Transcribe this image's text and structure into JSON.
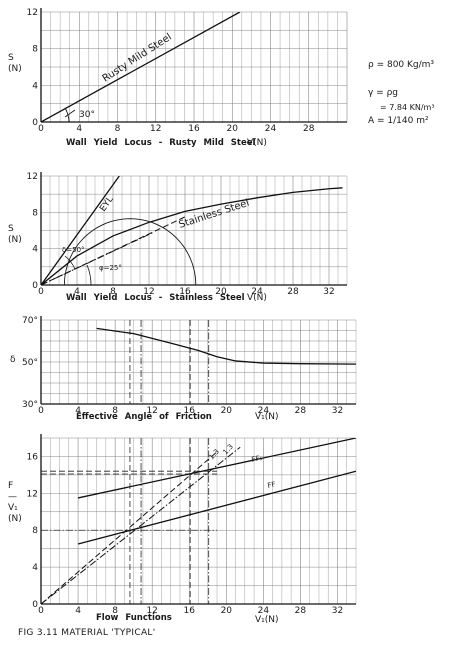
{
  "side_notes": {
    "rho": "ρ = 800 Kg/m³",
    "gamma": "γ = ρg",
    "gamma_value": "= 7.84 KN/m³",
    "area": "A = 1/140 m²"
  },
  "caption": "FIG 3.11   MATERIAL 'TYPICAL'",
  "chart_data": [
    {
      "type": "line",
      "title": "Wall Yield Locus - Rusty Mild Steel",
      "xlabel": "V(N)",
      "ylabel": "S\n(N)",
      "xlim": [
        0,
        32
      ],
      "ylim": [
        0,
        12
      ],
      "x_ticks": [
        0,
        4,
        8,
        12,
        16,
        20,
        24,
        28
      ],
      "y_ticks": [
        0,
        4,
        8,
        12
      ],
      "grid": true,
      "series": [
        {
          "name": "Rusty Mild Steel",
          "style": "solid",
          "points": [
            [
              0,
              0
            ],
            [
              20.8,
              12
            ]
          ]
        }
      ],
      "annotations": [
        {
          "text": "30°",
          "x": 3.3,
          "y": 0.7
        }
      ]
    },
    {
      "type": "line",
      "title": "Wall Yield Locus - Stainless Steel",
      "xlabel": "V(N)",
      "ylabel": "S\n(N)",
      "xlim": [
        0,
        34
      ],
      "ylim": [
        0,
        12
      ],
      "x_ticks": [
        0,
        4,
        8,
        12,
        16,
        20,
        24,
        28,
        32
      ],
      "y_ticks": [
        0,
        4,
        8,
        12
      ],
      "grid": true,
      "series": [
        {
          "name": "EYL",
          "style": "solid",
          "points": [
            [
              0,
              0
            ],
            [
              8.7,
              12
            ]
          ]
        },
        {
          "name": "Stainless Steel",
          "style": "solid",
          "points": [
            [
              0,
              0
            ],
            [
              4,
              3.2
            ],
            [
              8,
              5.4
            ],
            [
              12,
              6.9
            ],
            [
              16,
              8.1
            ],
            [
              20,
              8.9
            ],
            [
              24,
              9.6
            ],
            [
              28,
              10.2
            ],
            [
              32,
              10.6
            ],
            [
              33.5,
              10.7
            ]
          ]
        },
        {
          "name": "",
          "style": "dashed",
          "points": [
            [
              0,
              0
            ],
            [
              16,
              7.5
            ]
          ]
        },
        {
          "name": "",
          "style": "dashdot",
          "points": [
            [
              0,
              0
            ],
            [
              12.5,
              5.8
            ]
          ]
        },
        {
          "name": "",
          "style": "circle",
          "center": [
            9.9,
            0
          ],
          "radius": 7.3
        }
      ],
      "annotations": [
        {
          "text": "δ=50°",
          "x": 3.2,
          "y": 3.1
        },
        {
          "text": "φ=25°",
          "x": 7.6,
          "y": 1.3
        }
      ]
    },
    {
      "type": "line",
      "title": "Effective Angle of Friction",
      "xlabel": "V₁(N)",
      "ylabel": "δ",
      "xlim": [
        0,
        34
      ],
      "ylim": [
        30,
        70
      ],
      "x_ticks": [
        0,
        4,
        8,
        12,
        16,
        20,
        24,
        28,
        32
      ],
      "y_ticks": [
        30,
        50,
        70
      ],
      "y_tick_labels": [
        "30°",
        "50°",
        "70°"
      ],
      "grid": true,
      "series": [
        {
          "name": "",
          "style": "solid",
          "points": [
            [
              6,
              66
            ],
            [
              10,
              63.5
            ],
            [
              14,
              59
            ],
            [
              17,
              55.5
            ],
            [
              19,
              52.5
            ],
            [
              21,
              50.5
            ],
            [
              24,
              49.5
            ],
            [
              28,
              49.2
            ],
            [
              34,
              49
            ]
          ]
        }
      ],
      "vertical_guides": [
        {
          "x": 9.6,
          "style": "dashed"
        },
        {
          "x": 10.8,
          "style": "dashdot"
        },
        {
          "x": 16.1,
          "style": "dashed"
        },
        {
          "x": 18.1,
          "style": "dashdot"
        }
      ]
    },
    {
      "type": "line",
      "title": "Flow Functions",
      "xlabel": "V₁(N)",
      "ylabel": "F\n—\nV₁\n(N)",
      "xlim": [
        0,
        34
      ],
      "ylim": [
        0,
        18
      ],
      "x_ticks": [
        0,
        4,
        8,
        12,
        16,
        20,
        24,
        28,
        32
      ],
      "y_ticks": [
        0,
        4,
        8,
        12,
        16
      ],
      "grid": true,
      "series": [
        {
          "name": "FF₁",
          "style": "solid",
          "points": [
            [
              4,
              11.5
            ],
            [
              34,
              18
            ]
          ]
        },
        {
          "name": "FF",
          "style": "solid",
          "points": [
            [
              4,
              6.5
            ],
            [
              34,
              14.4
            ]
          ]
        },
        {
          "name": "1.3",
          "style": "dashed",
          "points": [
            [
              0,
              0
            ],
            [
              19,
              16.5
            ]
          ]
        },
        {
          "name": "1.3",
          "style": "dashdot",
          "points": [
            [
              0,
              0
            ],
            [
              21.5,
              17
            ]
          ]
        }
      ],
      "horizontal_guides": [
        {
          "y": 14.4,
          "style": "dashed"
        },
        {
          "y": 14.1,
          "style": "dashed"
        },
        {
          "y": 8,
          "style": "dashdot"
        }
      ],
      "vertical_guides": [
        {
          "x": 9.6,
          "style": "dashed"
        },
        {
          "x": 10.8,
          "style": "dashdot"
        },
        {
          "x": 16.1,
          "style": "dashed"
        },
        {
          "x": 18.1,
          "style": "dashdot"
        }
      ]
    }
  ]
}
